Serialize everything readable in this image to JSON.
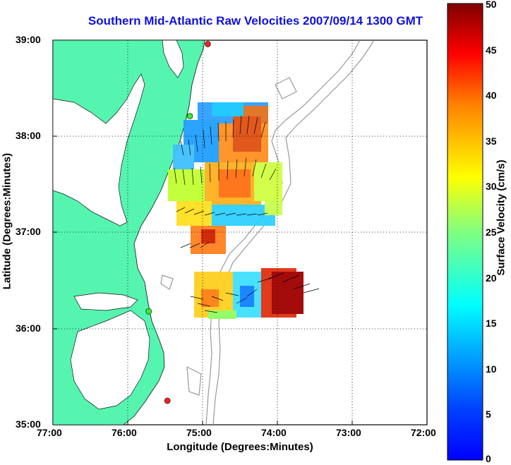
{
  "title": "Southern Mid-Atlantic Raw Velocities 2007/09/14 1300 GMT",
  "xlabel": "Longitude (Degrees:Minutes)",
  "ylabel": "Latitude (Degrees:Minutes)",
  "colorbar_label": "Surface Velocity (cm/s)",
  "xticks": [
    "77:00",
    "76:00",
    "75:00",
    "74:00",
    "73:00",
    "72:00"
  ],
  "yticks": [
    "39:00",
    "38:00",
    "37:00",
    "36:00",
    "35:00"
  ],
  "colorbar_ticks": [
    "50",
    "45",
    "40",
    "35",
    "30",
    "25",
    "20",
    "15",
    "10",
    "5",
    "0"
  ],
  "colors": {
    "land": "#55f5b0",
    "ocean": "#ffffff",
    "title": "#1010e0",
    "bathymetry": "#999999",
    "station": "#ff2020",
    "station_alt": "#33ee33"
  },
  "colormap": "jet",
  "color_range": [
    0,
    50
  ],
  "x_range_deg_west": [
    77,
    72
  ],
  "y_range_deg_north": [
    35,
    39
  ],
  "grid": "dotted",
  "stations": [
    {
      "id": "north",
      "lon": -74.93,
      "lat": 38.96,
      "color": "red"
    },
    {
      "id": "mid",
      "lon": -75.17,
      "lat": 38.21,
      "color": "green"
    },
    {
      "id": "south1",
      "lon": -75.72,
      "lat": 36.18,
      "color": "green"
    },
    {
      "id": "south2",
      "lon": -75.47,
      "lat": 35.25,
      "color": "red"
    }
  ]
}
